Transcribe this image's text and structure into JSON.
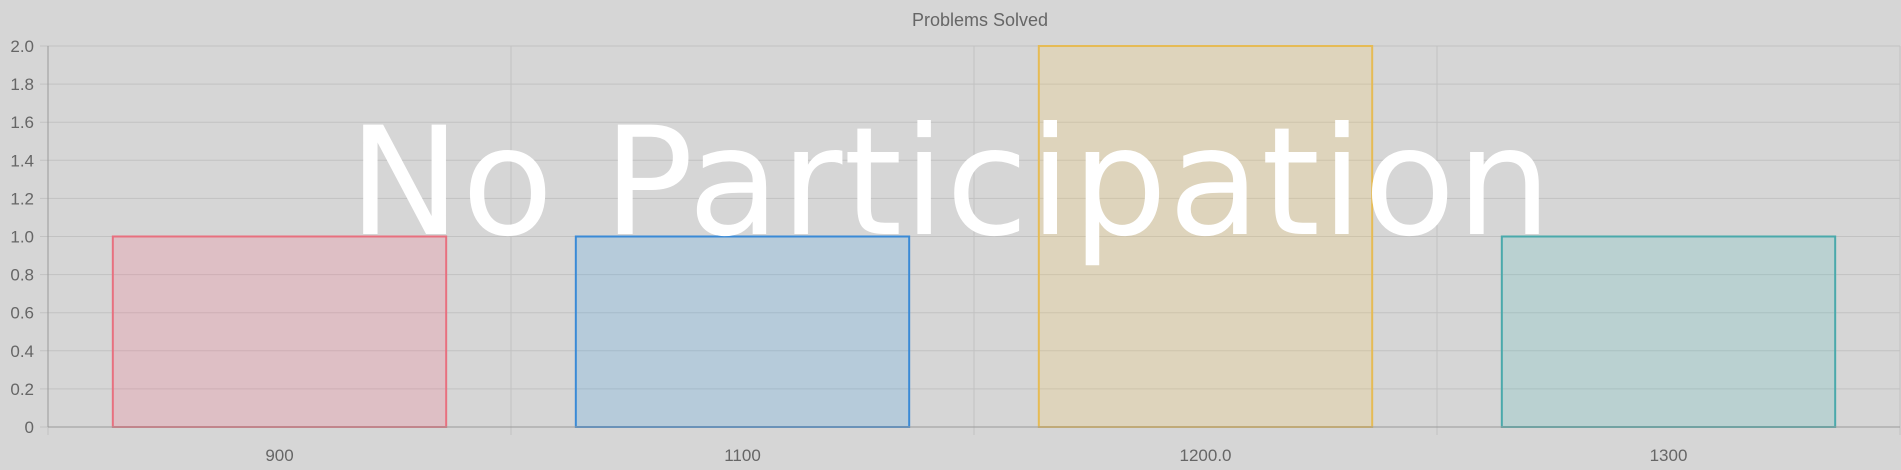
{
  "overlay_text": "No Participation",
  "chart_data": {
    "type": "bar",
    "title": "Problems Solved",
    "xlabel": "",
    "ylabel": "",
    "categories": [
      "900",
      "1100",
      "1200.0",
      "1300"
    ],
    "values": [
      1,
      1,
      2,
      1
    ],
    "ylim": [
      0,
      2.0
    ],
    "yticks": [
      "0",
      "0.2",
      "0.4",
      "0.6",
      "0.8",
      "1.0",
      "1.2",
      "1.4",
      "1.6",
      "1.8",
      "2.0"
    ],
    "grid": true,
    "legend": "none",
    "colors": {
      "fills": [
        "rgba(255,99,132,0.2)",
        "rgba(54,162,235,0.2)",
        "rgba(255,206,86,0.2)",
        "rgba(75,192,192,0.2)"
      ],
      "borders": [
        "#e8707f",
        "#3a8ad6",
        "#e6bb55",
        "#4aa9ab"
      ],
      "grid": "#c2c2c2",
      "axis": "#9a9a9a"
    }
  }
}
